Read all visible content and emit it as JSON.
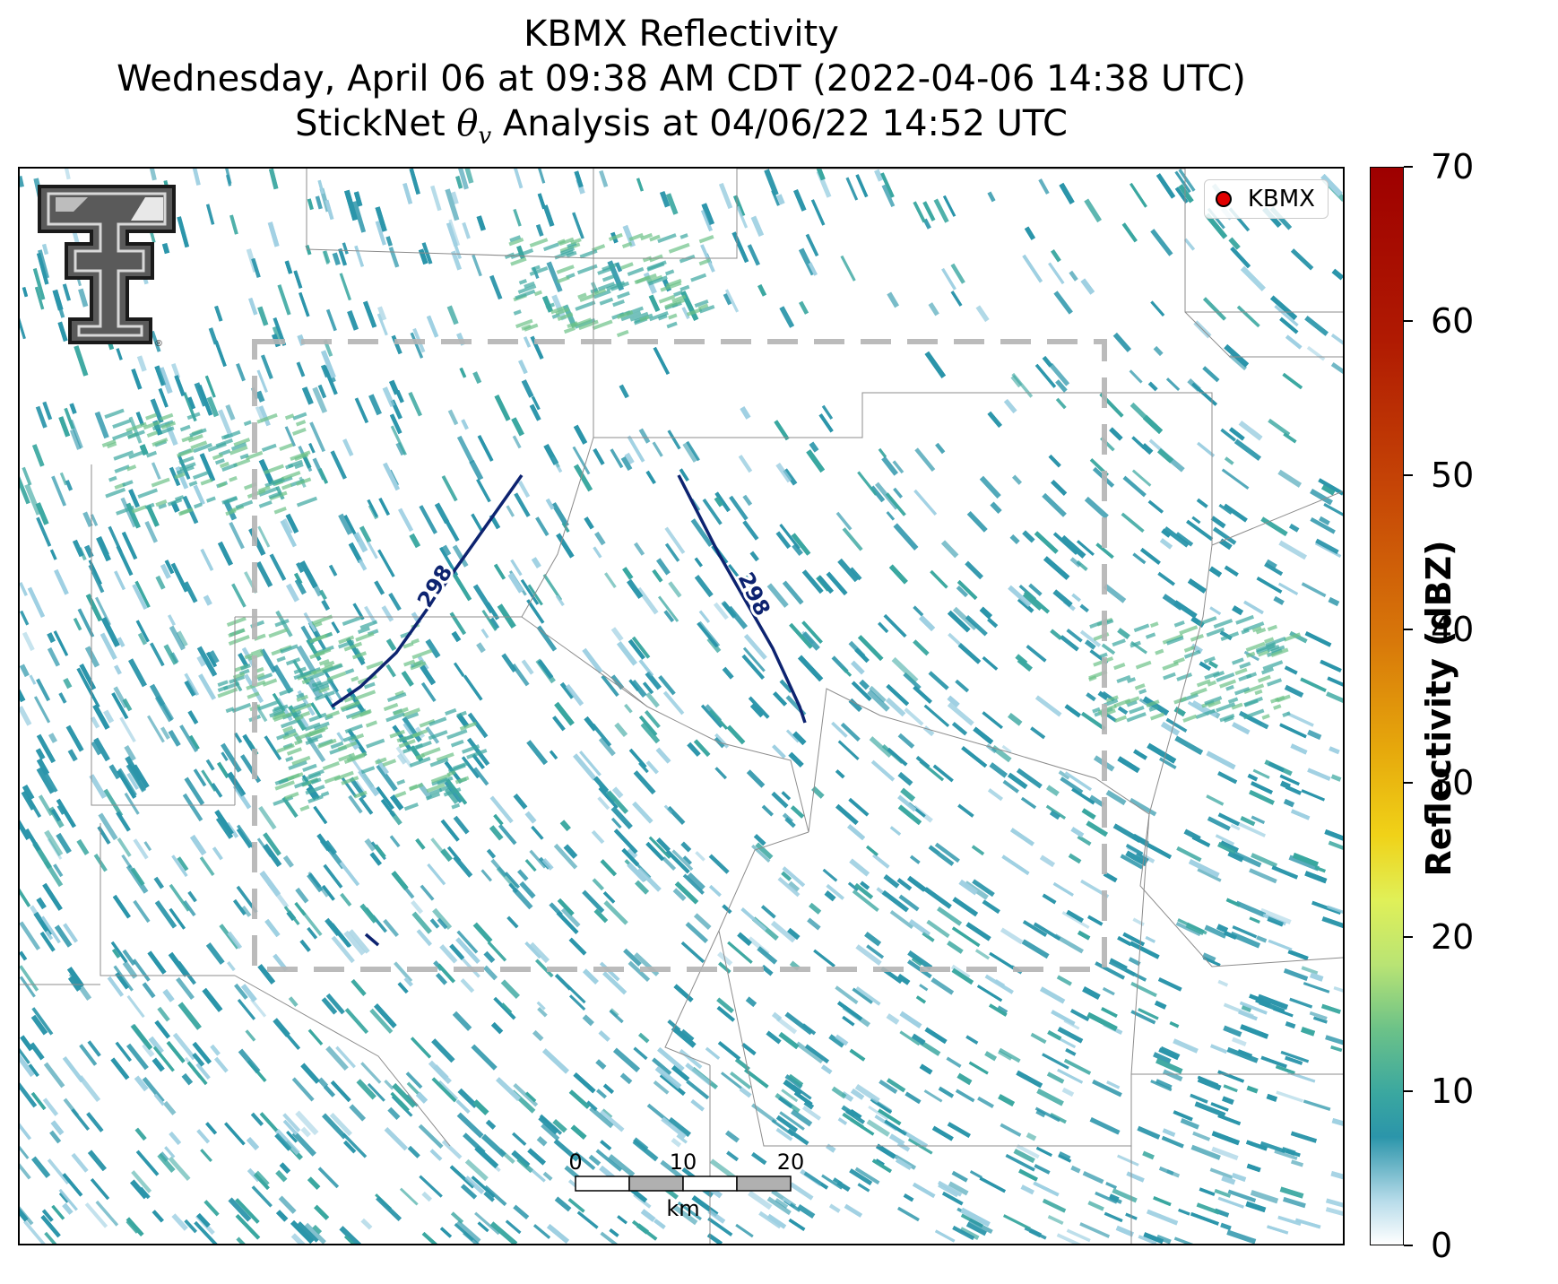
{
  "title": {
    "line1": "KBMX Reflectivity",
    "line2": "Wednesday, April 06 at 09:38 AM CDT (2022-04-06 14:38 UTC)",
    "line3_prefix": "StickNet ",
    "line3_symbol": "θ",
    "line3_subscript": "v",
    "line3_suffix": " Analysis at 04/06/22 14:52 UTC"
  },
  "legend": {
    "label": "KBMX",
    "marker_color": "#e00000"
  },
  "logo": {
    "icon": "texas-tech-double-t-logo"
  },
  "contours": [
    {
      "label": "298",
      "color": "#0d2370"
    },
    {
      "label": "298",
      "color": "#0d2370"
    }
  ],
  "scale_bar": {
    "ticks": [
      "0",
      "10",
      "20"
    ],
    "unit": "km"
  },
  "colorbar": {
    "title": "Reflectivity (dBZ)",
    "ticks": [
      "0",
      "10",
      "20",
      "30",
      "40",
      "50",
      "60",
      "70"
    ],
    "min": 0,
    "max": 70
  },
  "colors": {
    "light_echo": "#9fd0e2",
    "echo": "#2b95aa",
    "strong_echo": "#3aa7a0",
    "contour": "#0d2370",
    "analysis_box": "#b4b4b4"
  }
}
